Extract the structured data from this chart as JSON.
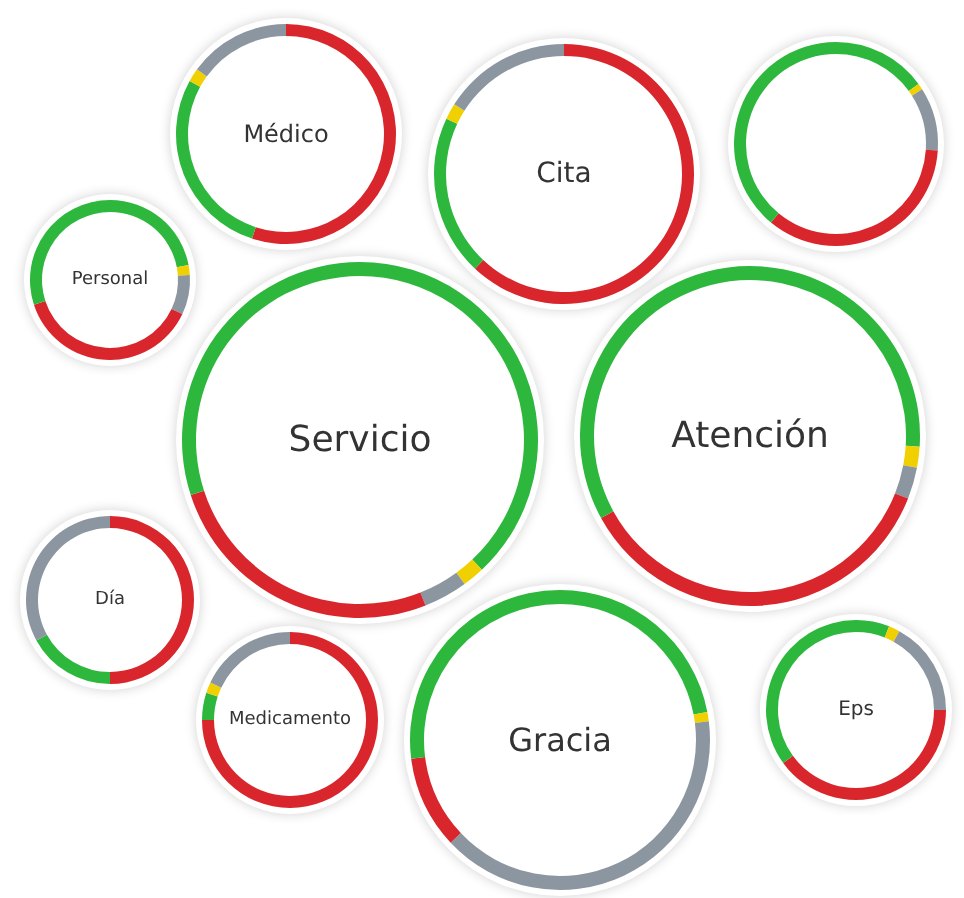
{
  "chart_data": [
    {
      "type": "donut",
      "title": "Médico",
      "categories": [
        null,
        null,
        null,
        null
      ],
      "values": [
        55,
        28,
        2,
        15
      ],
      "colors": [
        "#d9262c",
        "#2db83d",
        "#f0d000",
        "#8c96a0"
      ]
    },
    {
      "type": "donut",
      "title": "Cita",
      "categories": [
        null,
        null,
        null,
        null
      ],
      "values": [
        62,
        20,
        2,
        16
      ],
      "colors": [
        "#d9262c",
        "#2db83d",
        "#f0d000",
        "#8c96a0"
      ]
    },
    {
      "type": "donut",
      "categories": [
        null,
        null,
        null,
        null,
        null
      ],
      "values": [
        15,
        1,
        10,
        35,
        39
      ],
      "colors": [
        "#2db83d",
        "#f0d000",
        "#8c96a0",
        "#d9262c",
        "#2db83d"
      ]
    },
    {
      "type": "donut",
      "title": "Personal",
      "categories": [
        null,
        null,
        null,
        null,
        null
      ],
      "values": [
        22,
        2,
        8,
        38,
        30
      ],
      "colors": [
        "#2db83d",
        "#f0d000",
        "#8c96a0",
        "#d9262c",
        "#2db83d"
      ]
    },
    {
      "type": "donut",
      "title": "Servicio",
      "categories": [
        null,
        null,
        null,
        null,
        null
      ],
      "values": [
        38,
        2,
        4,
        26,
        30
      ],
      "colors": [
        "#2db83d",
        "#f0d000",
        "#8c96a0",
        "#d9262c",
        "#2db83d"
      ]
    },
    {
      "type": "donut",
      "title": "Atención",
      "categories": [
        null,
        null,
        null,
        null,
        null
      ],
      "values": [
        26,
        2,
        3,
        36,
        33
      ],
      "colors": [
        "#2db83d",
        "#f0d000",
        "#8c96a0",
        "#d9262c",
        "#2db83d"
      ]
    },
    {
      "type": "donut",
      "title": "Día",
      "categories": [
        null,
        null,
        null
      ],
      "values": [
        50,
        17,
        33
      ],
      "colors": [
        "#d9262c",
        "#2db83d",
        "#8c96a0"
      ]
    },
    {
      "type": "donut",
      "title": "Medicamento",
      "categories": [
        null,
        null,
        null,
        null
      ],
      "values": [
        75,
        5,
        2,
        18
      ],
      "colors": [
        "#d9262c",
        "#2db83d",
        "#f0d000",
        "#8c96a0"
      ]
    },
    {
      "type": "donut",
      "title": "Gracia",
      "categories": [
        null,
        null,
        null,
        null,
        null
      ],
      "values": [
        22,
        1,
        40,
        10,
        27
      ],
      "colors": [
        "#2db83d",
        "#f0d000",
        "#8c96a0",
        "#d9262c",
        "#2db83d"
      ]
    },
    {
      "type": "donut",
      "title": "Eps",
      "categories": [
        null,
        null,
        null,
        null,
        null
      ],
      "values": [
        6,
        2,
        17,
        40,
        35
      ],
      "colors": [
        "#2db83d",
        "#f0d000",
        "#8c96a0",
        "#d9262c",
        "#2db83d"
      ]
    }
  ]
}
